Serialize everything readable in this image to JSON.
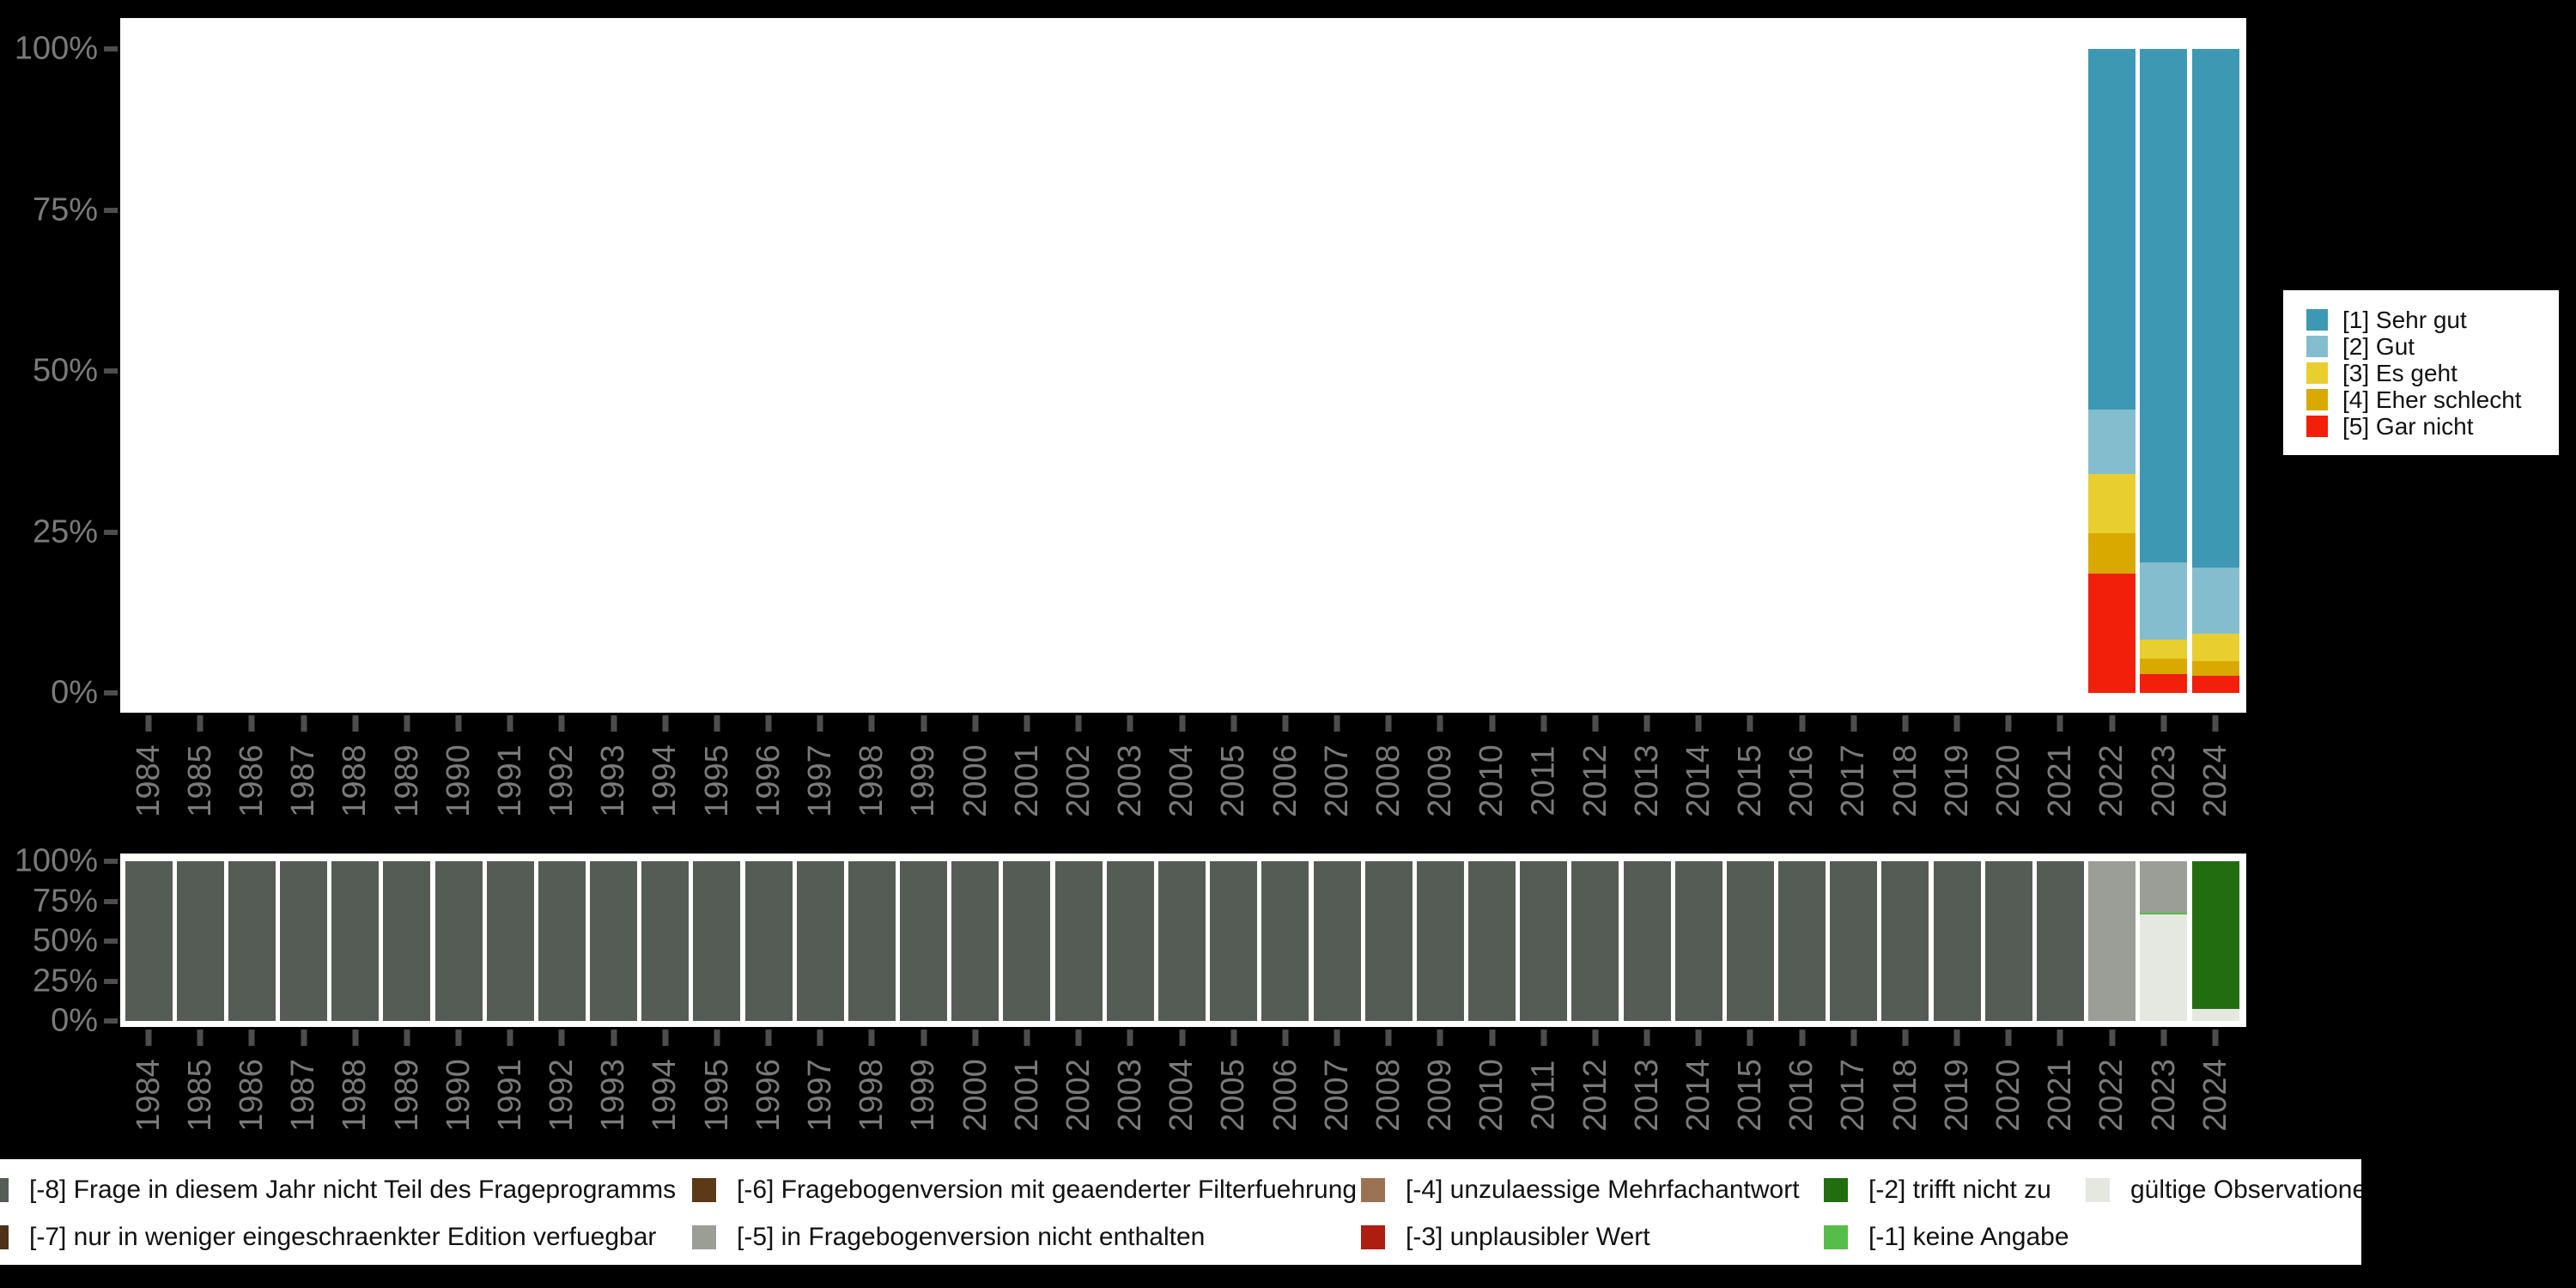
{
  "app": {
    "description": "Stacked percentage bar charts of a survey item per year (1984-2024) with missing-code breakdown"
  },
  "colors": {
    "background": "#000000",
    "plot_background": "#ffffff",
    "axis_text": "#7a7a7a",
    "tick_mark": "#4d4d4d",
    "legend_text": "#111111"
  },
  "axes": {
    "y_tick_labels_top_to_bottom": [
      "100%",
      "75%",
      "50%",
      "25%",
      "0%"
    ]
  },
  "chart_data": [
    {
      "type": "bar",
      "stacked": true,
      "unit": "percent",
      "title": "",
      "xlabel": "",
      "ylabel": "",
      "ylim": [
        0,
        100
      ],
      "grid": false,
      "legend_position": "right",
      "categories": [
        "1984",
        "1985",
        "1986",
        "1987",
        "1988",
        "1989",
        "1990",
        "1991",
        "1992",
        "1993",
        "1994",
        "1995",
        "1996",
        "1997",
        "1998",
        "1999",
        "2000",
        "2001",
        "2002",
        "2003",
        "2004",
        "2005",
        "2006",
        "2007",
        "2008",
        "2009",
        "2010",
        "2011",
        "2012",
        "2013",
        "2014",
        "2015",
        "2016",
        "2017",
        "2018",
        "2019",
        "2020",
        "2021",
        "2022",
        "2023",
        "2024"
      ],
      "y_tick_labels_top_to_bottom": [
        "100%",
        "75%",
        "50%",
        "25%",
        "0%"
      ],
      "stack_order_bottom_to_top": [
        "[5] Gar nicht",
        "[4] Eher schlecht",
        "[3] Es geht",
        "[2] Gut",
        "[1] Sehr gut"
      ],
      "series": [
        {
          "name": "[1] Sehr gut",
          "color": "#3d98b4",
          "values": {
            "2022": 56.0,
            "2023": 79.7,
            "2024": 80.5
          }
        },
        {
          "name": "[2] Gut",
          "color": "#84bdcd",
          "values": {
            "2022": 10.0,
            "2023": 12.0,
            "2024": 10.3
          }
        },
        {
          "name": "[3] Es geht",
          "color": "#e8ce2f",
          "values": {
            "2022": 9.2,
            "2023": 2.9,
            "2024": 4.2
          }
        },
        {
          "name": "[4] Eher schlecht",
          "color": "#d9a900",
          "values": {
            "2022": 6.2,
            "2023": 2.4,
            "2024": 2.3
          }
        },
        {
          "name": "[5] Gar nicht",
          "color": "#f21f0a",
          "values": {
            "2022": 18.6,
            "2023": 3.0,
            "2024": 2.7
          }
        }
      ]
    },
    {
      "type": "bar",
      "stacked": true,
      "unit": "percent",
      "title": "",
      "xlabel": "",
      "ylabel": "",
      "ylim": [
        0,
        100
      ],
      "grid": false,
      "legend_position": "bottom",
      "categories": [
        "1984",
        "1985",
        "1986",
        "1987",
        "1988",
        "1989",
        "1990",
        "1991",
        "1992",
        "1993",
        "1994",
        "1995",
        "1996",
        "1997",
        "1998",
        "1999",
        "2000",
        "2001",
        "2002",
        "2003",
        "2004",
        "2005",
        "2006",
        "2007",
        "2008",
        "2009",
        "2010",
        "2011",
        "2012",
        "2013",
        "2014",
        "2015",
        "2016",
        "2017",
        "2018",
        "2019",
        "2020",
        "2021",
        "2022",
        "2023",
        "2024"
      ],
      "y_tick_labels_top_to_bottom": [
        "100%",
        "75%",
        "50%",
        "25%",
        "0%"
      ],
      "stack_order_bottom_to_top": [
        "gültige Observationen",
        "[-1] keine Angabe",
        "[-2] trifft nicht zu",
        "[-3] unplausibler Wert",
        "[-4] unzulaessige Mehrfachantwort",
        "[-5] in Fragebogenversion nicht enthalten",
        "[-6] Fragebogenversion mit geaenderter Filterfuehrung",
        "[-7] nur in weniger eingeschraenkter Edition verfuegbar",
        "[-8] Frage in diesem Jahr nicht Teil des Frageprogramms"
      ],
      "series": [
        {
          "name": "[-8] Frage in diesem Jahr nicht Teil des Frageprogramms",
          "color": "#555c55",
          "values": {
            "1984": 100,
            "1985": 100,
            "1986": 100,
            "1987": 100,
            "1988": 100,
            "1989": 100,
            "1990": 100,
            "1991": 100,
            "1992": 100,
            "1993": 100,
            "1994": 100,
            "1995": 100,
            "1996": 100,
            "1997": 100,
            "1998": 100,
            "1999": 100,
            "2000": 100,
            "2001": 100,
            "2002": 100,
            "2003": 100,
            "2004": 100,
            "2005": 100,
            "2006": 100,
            "2007": 100,
            "2008": 100,
            "2009": 100,
            "2010": 100,
            "2011": 100,
            "2012": 100,
            "2013": 100,
            "2014": 100,
            "2015": 100,
            "2016": 100,
            "2017": 100,
            "2018": 100,
            "2019": 100,
            "2020": 100,
            "2021": 100
          }
        },
        {
          "name": "[-7] nur in weniger eingeschraenkter Edition verfuegbar",
          "color": "#4d3217",
          "values": {}
        },
        {
          "name": "[-6] Fragebogenversion mit geaenderter Filterfuehrung",
          "color": "#5c3a17",
          "values": {}
        },
        {
          "name": "[-5] in Fragebogenversion nicht enthalten",
          "color": "#9a9e97",
          "values": {
            "2022": 100,
            "2023": 32.1
          }
        },
        {
          "name": "[-4] unzulaessige Mehrfachantwort",
          "color": "#9b7252",
          "values": {}
        },
        {
          "name": "[-3] unplausibler Wert",
          "color": "#ad1d10",
          "values": {}
        },
        {
          "name": "[-2] trifft nicht zu",
          "color": "#226d10",
          "values": {
            "2024": 92.3
          }
        },
        {
          "name": "[-1] keine Angabe",
          "color": "#57bc49",
          "values": {
            "2023": 1.2
          }
        },
        {
          "name": "gültige Observationen",
          "color": "#e4e8e1",
          "values": {
            "2023": 66.7,
            "2024": 7.7
          }
        }
      ]
    }
  ],
  "answer_legend": {
    "items": [
      {
        "label": "[1] Sehr gut",
        "color": "#3d98b4"
      },
      {
        "label": "[2] Gut",
        "color": "#84bdcd"
      },
      {
        "label": "[3] Es geht",
        "color": "#e8ce2f"
      },
      {
        "label": "[4] Eher schlecht",
        "color": "#d9a900"
      },
      {
        "label": "[5] Gar nicht",
        "color": "#f21f0a"
      }
    ]
  },
  "missing_legend": {
    "columns": [
      [
        {
          "label": "[-8] Frage in diesem Jahr nicht Teil des Frageprogramms",
          "color": "#555c55"
        },
        {
          "label": "[-7] nur in weniger eingeschraenkter Edition verfuegbar",
          "color": "#4d3217"
        }
      ],
      [
        {
          "label": "[-6] Fragebogenversion mit geaenderter Filterfuehrung",
          "color": "#5c3a17"
        },
        {
          "label": "[-5] in Fragebogenversion nicht enthalten",
          "color": "#9a9e97"
        }
      ],
      [
        {
          "label": "[-4] unzulaessige Mehrfachantwort",
          "color": "#9b7252"
        },
        {
          "label": "[-3] unplausibler Wert",
          "color": "#ad1d10"
        }
      ],
      [
        {
          "label": "[-2] trifft nicht zu",
          "color": "#226d10"
        },
        {
          "label": "[-1] keine Angabe",
          "color": "#57bc49"
        }
      ],
      [
        {
          "label": "gültige Observationen",
          "color": "#e4e8e1"
        }
      ]
    ]
  }
}
